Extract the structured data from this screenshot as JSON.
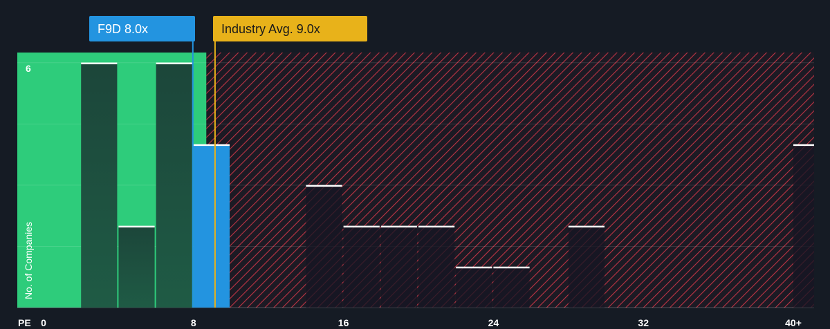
{
  "chart_data": {
    "type": "bar",
    "x_axis_label": "PE",
    "ylabel": "No. of Companies",
    "y_tick_labels": [
      "6"
    ],
    "x_ticks": [
      {
        "value": 0,
        "label": "0"
      },
      {
        "value": 8,
        "label": "8"
      },
      {
        "value": 16,
        "label": "16"
      },
      {
        "value": 24,
        "label": "24"
      },
      {
        "value": 32,
        "label": "32"
      },
      {
        "value": 40,
        "label": "40+"
      }
    ],
    "xlim": [
      0,
      41
    ],
    "ylim": [
      0,
      6.25
    ],
    "bin_width": 2,
    "bins": [
      {
        "x0": 2,
        "count": 6
      },
      {
        "x0": 4,
        "count": 2
      },
      {
        "x0": 6,
        "count": 6
      },
      {
        "x0": 8,
        "count": 4,
        "highlight": true
      },
      {
        "x0": 14,
        "count": 3
      },
      {
        "x0": 16,
        "count": 2
      },
      {
        "x0": 18,
        "count": 2
      },
      {
        "x0": 20,
        "count": 2
      },
      {
        "x0": 22,
        "count": 1
      },
      {
        "x0": 24,
        "count": 1
      },
      {
        "x0": 28,
        "count": 2
      },
      {
        "x0": 40,
        "count": 4
      }
    ],
    "company": {
      "label": "F9D 8.0x",
      "value": 8.0,
      "color": "#2394e0"
    },
    "industry_avg": {
      "label": "Industry Avg. 9.0x",
      "value": 9.0,
      "color": "#e8b21a"
    },
    "zones": {
      "green_color": "#2ecc7b",
      "red_color": "#d9384a"
    },
    "grid": true
  }
}
